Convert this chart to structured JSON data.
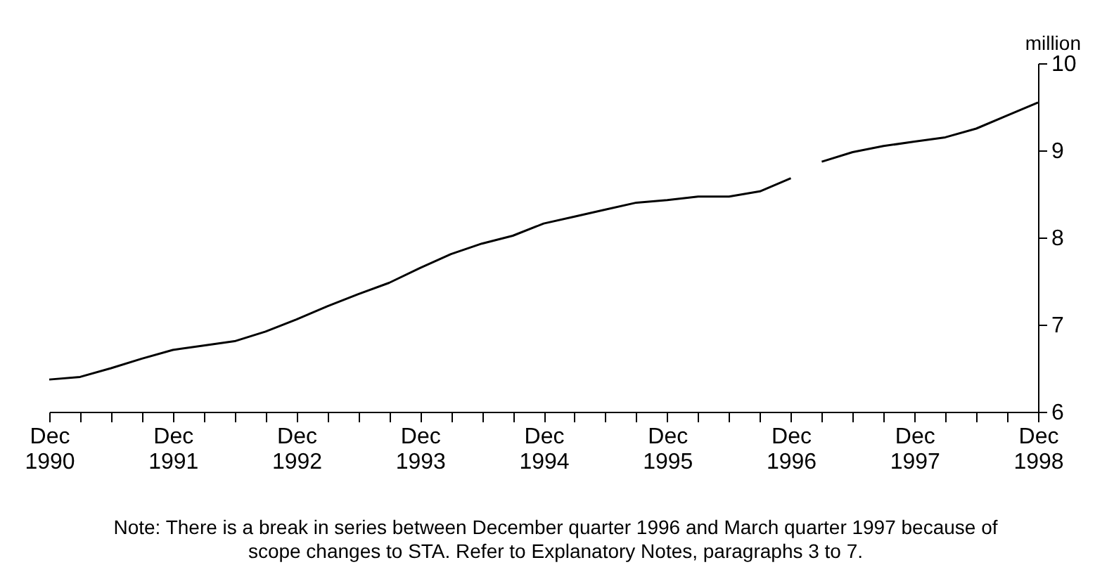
{
  "chart_data": {
    "type": "line",
    "ylabel": "million",
    "categories": [
      "Dec 1990",
      null,
      null,
      null,
      "Dec 1991",
      null,
      null,
      null,
      "Dec 1992",
      null,
      null,
      null,
      "Dec 1993",
      null,
      null,
      null,
      "Dec 1994",
      null,
      null,
      null,
      "Dec 1995",
      null,
      null,
      null,
      "Dec 1996",
      null,
      null,
      null,
      "Dec 1997",
      null,
      null,
      null,
      "Dec 1998"
    ],
    "series": [
      {
        "color": "#000000",
        "values": [
          6.37,
          6.4,
          6.5,
          6.61,
          6.71,
          6.76,
          6.81,
          6.92,
          7.06,
          7.21,
          7.35,
          7.48,
          7.65,
          7.81,
          7.93,
          8.02,
          8.16,
          8.24,
          8.32,
          8.4,
          8.43,
          8.47,
          8.47,
          8.53,
          8.68,
          null,
          null,
          null,
          null,
          null,
          null,
          null,
          null
        ]
      },
      {
        "color": "#000000",
        "values": [
          null,
          null,
          null,
          null,
          null,
          null,
          null,
          null,
          null,
          null,
          null,
          null,
          null,
          null,
          null,
          null,
          null,
          null,
          null,
          null,
          null,
          null,
          null,
          null,
          null,
          8.87,
          8.98,
          9.05,
          9.1,
          9.15,
          9.25,
          9.4,
          9.55
        ]
      }
    ],
    "ylim": [
      6,
      10
    ],
    "yticks": [
      6,
      7,
      8,
      9,
      10
    ],
    "grid": false,
    "legend": false,
    "annotations": [
      "Note: There is a break in series between December quarter 1996 and March quarter 1997 because of scope changes to STA. Refer to Explanatory Notes, paragraphs 3 to 7."
    ]
  }
}
